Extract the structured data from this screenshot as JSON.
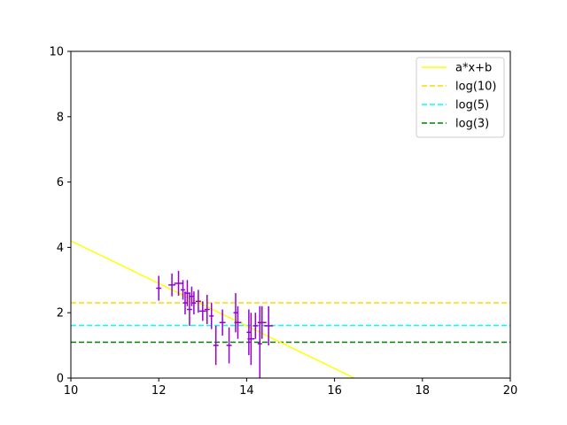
{
  "chart_data": {
    "type": "scatter",
    "title": "",
    "xlabel": "",
    "ylabel": "",
    "xlim": [
      10,
      20
    ],
    "ylim": [
      0,
      10
    ],
    "xticks": [
      10,
      12,
      14,
      16,
      18,
      20
    ],
    "yticks": [
      0,
      2,
      4,
      6,
      8,
      10
    ],
    "grid": false,
    "legend_position": "top-right",
    "fit_line": {
      "name": "a*x+b",
      "color": "#ffff00",
      "x": [
        10,
        16.45
      ],
      "y": [
        4.2,
        0
      ]
    },
    "hlines": [
      {
        "name": "log(10)",
        "y": 2.3026,
        "color": "#ffd700"
      },
      {
        "name": "log(5)",
        "y": 1.6094,
        "color": "#00ffff"
      },
      {
        "name": "log(3)",
        "y": 1.0986,
        "color": "#008000"
      }
    ],
    "points_color": "#9400d3",
    "points": [
      {
        "x": 12.0,
        "y": 2.75,
        "xerr": 0.06,
        "yerr": 0.38
      },
      {
        "x": 12.3,
        "y": 2.85,
        "xerr": 0.08,
        "yerr": 0.35
      },
      {
        "x": 12.45,
        "y": 2.9,
        "xerr": 0.1,
        "yerr": 0.38
      },
      {
        "x": 12.55,
        "y": 2.7,
        "xerr": 0.05,
        "yerr": 0.3
      },
      {
        "x": 12.6,
        "y": 2.3,
        "xerr": 0.05,
        "yerr": 0.35
      },
      {
        "x": 12.65,
        "y": 2.6,
        "xerr": 0.07,
        "yerr": 0.4
      },
      {
        "x": 12.7,
        "y": 2.1,
        "xerr": 0.06,
        "yerr": 0.5
      },
      {
        "x": 12.75,
        "y": 2.5,
        "xerr": 0.05,
        "yerr": 0.3
      },
      {
        "x": 12.8,
        "y": 2.3,
        "xerr": 0.05,
        "yerr": 0.35
      },
      {
        "x": 12.9,
        "y": 2.35,
        "xerr": 0.06,
        "yerr": 0.35
      },
      {
        "x": 13.0,
        "y": 2.05,
        "xerr": 0.08,
        "yerr": 0.3
      },
      {
        "x": 13.1,
        "y": 2.1,
        "xerr": 0.06,
        "yerr": 0.45
      },
      {
        "x": 13.2,
        "y": 1.9,
        "xerr": 0.05,
        "yerr": 0.4
      },
      {
        "x": 13.3,
        "y": 1.0,
        "xerr": 0.06,
        "yerr": 0.6
      },
      {
        "x": 13.45,
        "y": 1.7,
        "xerr": 0.07,
        "yerr": 0.4
      },
      {
        "x": 13.6,
        "y": 1.0,
        "xerr": 0.06,
        "yerr": 0.55
      },
      {
        "x": 13.75,
        "y": 2.0,
        "xerr": 0.05,
        "yerr": 0.6
      },
      {
        "x": 13.8,
        "y": 1.7,
        "xerr": 0.08,
        "yerr": 0.5
      },
      {
        "x": 14.05,
        "y": 1.4,
        "xerr": 0.05,
        "yerr": 0.7
      },
      {
        "x": 14.1,
        "y": 1.2,
        "xerr": 0.08,
        "yerr": 0.8
      },
      {
        "x": 14.2,
        "y": 1.6,
        "xerr": 0.06,
        "yerr": 0.4
      },
      {
        "x": 14.3,
        "y": 1.05,
        "xerr": 0.05,
        "yerr": 1.15
      },
      {
        "x": 14.35,
        "y": 1.7,
        "xerr": 0.1,
        "yerr": 0.5
      },
      {
        "x": 14.5,
        "y": 1.6,
        "xerr": 0.1,
        "yerr": 0.6
      }
    ]
  }
}
